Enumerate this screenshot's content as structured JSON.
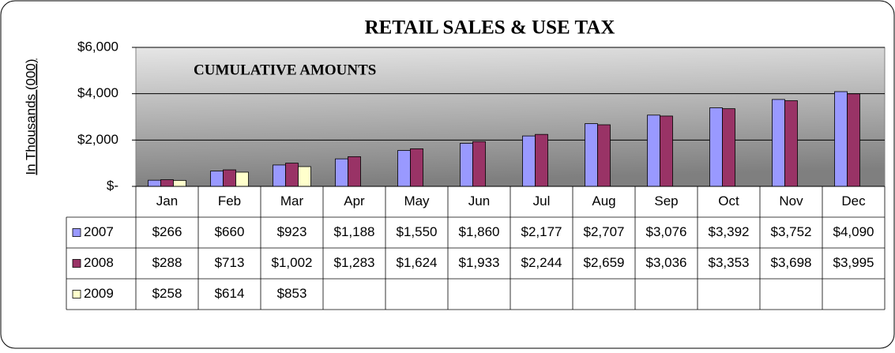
{
  "chart_data": {
    "type": "bar",
    "title": "RETAIL SALES & USE TAX",
    "subtitle": "CUMULATIVE AMOUNTS",
    "y_label": "In Thousands (000)",
    "categories": [
      "Jan",
      "Feb",
      "Mar",
      "Apr",
      "May",
      "Jun",
      "Jul",
      "Aug",
      "Sep",
      "Oct",
      "Nov",
      "Dec"
    ],
    "series": [
      {
        "name": "2007",
        "color": "#9999ff",
        "values": [
          266,
          660,
          923,
          1188,
          1550,
          1860,
          2177,
          2707,
          3076,
          3392,
          3752,
          4090
        ],
        "value_labels": [
          "$266",
          "$660",
          "$923",
          "$1,188",
          "$1,550",
          "$1,860",
          "$2,177",
          "$2,707",
          "$3,076",
          "$3,392",
          "$3,752",
          "$4,090"
        ]
      },
      {
        "name": "2008",
        "color": "#993366",
        "values": [
          288,
          713,
          1002,
          1283,
          1624,
          1933,
          2244,
          2659,
          3036,
          3353,
          3698,
          3995
        ],
        "value_labels": [
          "$288",
          "$713",
          "$1,002",
          "$1,283",
          "$1,624",
          "$1,933",
          "$2,244",
          "$2,659",
          "$3,036",
          "$3,353",
          "$3,698",
          "$3,995"
        ]
      },
      {
        "name": "2009",
        "color": "#ffffcc",
        "values": [
          258,
          614,
          853,
          null,
          null,
          null,
          null,
          null,
          null,
          null,
          null,
          null
        ],
        "value_labels": [
          "$258",
          "$614",
          "$853",
          null,
          null,
          null,
          null,
          null,
          null,
          null,
          null,
          null
        ]
      }
    ],
    "ylim": [
      0,
      6000
    ],
    "yticks": [
      {
        "value": 0,
        "label": "$-"
      },
      {
        "value": 2000,
        "label": "$2,000"
      },
      {
        "value": 4000,
        "label": "$4,000"
      },
      {
        "value": 6000,
        "label": "$6,000"
      }
    ],
    "grid": true
  }
}
